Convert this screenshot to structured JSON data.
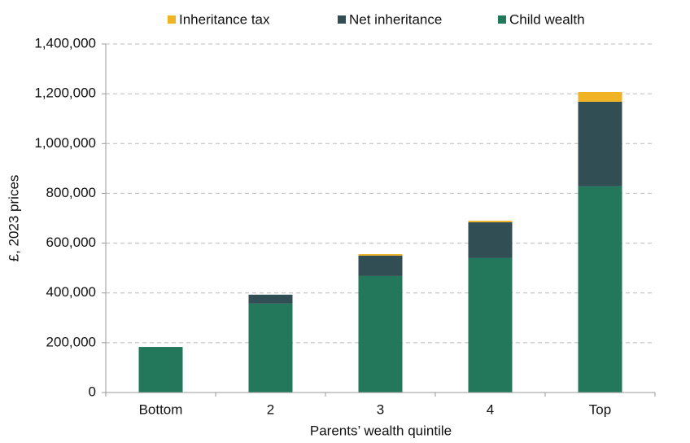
{
  "chart_data": {
    "type": "stacked-bar",
    "x_label": "Parents’ wealth quintile",
    "y_label": "£, 2023 prices",
    "categories": [
      "Bottom",
      "2",
      "3",
      "4",
      "Top"
    ],
    "series": [
      {
        "name": "Inheritance tax",
        "color": "#f0b323",
        "values": [
          0,
          0,
          6000,
          6000,
          39000
        ]
      },
      {
        "name": "Net inheritance",
        "color": "#304e53",
        "values": [
          0,
          36000,
          82000,
          144000,
          340000
        ]
      },
      {
        "name": "Child wealth",
        "color": "#23775a",
        "values": [
          183000,
          357000,
          468000,
          540000,
          828000
        ]
      }
    ],
    "ylim": [
      0,
      1400000
    ],
    "yticks": [
      0,
      {
        "value": 200000,
        "label": "200,000"
      },
      {
        "value": 400000,
        "label": "400,000"
      },
      {
        "value": 600000,
        "label": "600,000"
      },
      {
        "value": 800000,
        "label": "800,000"
      },
      {
        "value": 1000000,
        "label": "1,000,000"
      },
      {
        "value": 1200000,
        "label": "1,200,000"
      },
      {
        "value": 1400000,
        "label": "1,400,000"
      }
    ],
    "grid": true,
    "legend": "top"
  }
}
